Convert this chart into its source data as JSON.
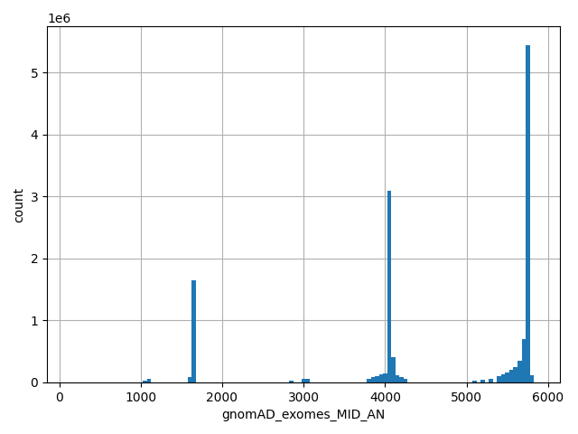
{
  "xlabel": "gnomAD_exomes_MID_AN",
  "ylabel": "count",
  "bar_color": "#1f77b4",
  "xlim": [
    -150,
    6150
  ],
  "ylim": [
    0,
    5750000
  ],
  "yticks": [
    0,
    1000000,
    2000000,
    3000000,
    4000000,
    5000000
  ],
  "xticks": [
    0,
    1000,
    2000,
    3000,
    4000,
    5000,
    6000
  ],
  "bin_width": 50,
  "bins_centers": [
    1050,
    1100,
    1600,
    1650,
    2850,
    3000,
    3050,
    3800,
    3850,
    3900,
    3950,
    4000,
    4050,
    4100,
    4150,
    4200,
    4250,
    5100,
    5200,
    5300,
    5400,
    5450,
    5500,
    5550,
    5600,
    5650,
    5700,
    5750,
    5800
  ],
  "bins_counts": [
    30000,
    50000,
    80000,
    1650000,
    30000,
    60000,
    50000,
    50000,
    80000,
    100000,
    130000,
    150000,
    3100000,
    400000,
    120000,
    80000,
    50000,
    30000,
    40000,
    60000,
    100000,
    130000,
    160000,
    200000,
    250000,
    350000,
    700000,
    5450000,
    120000
  ],
  "figsize": [
    6.4,
    4.8
  ],
  "dpi": 100
}
